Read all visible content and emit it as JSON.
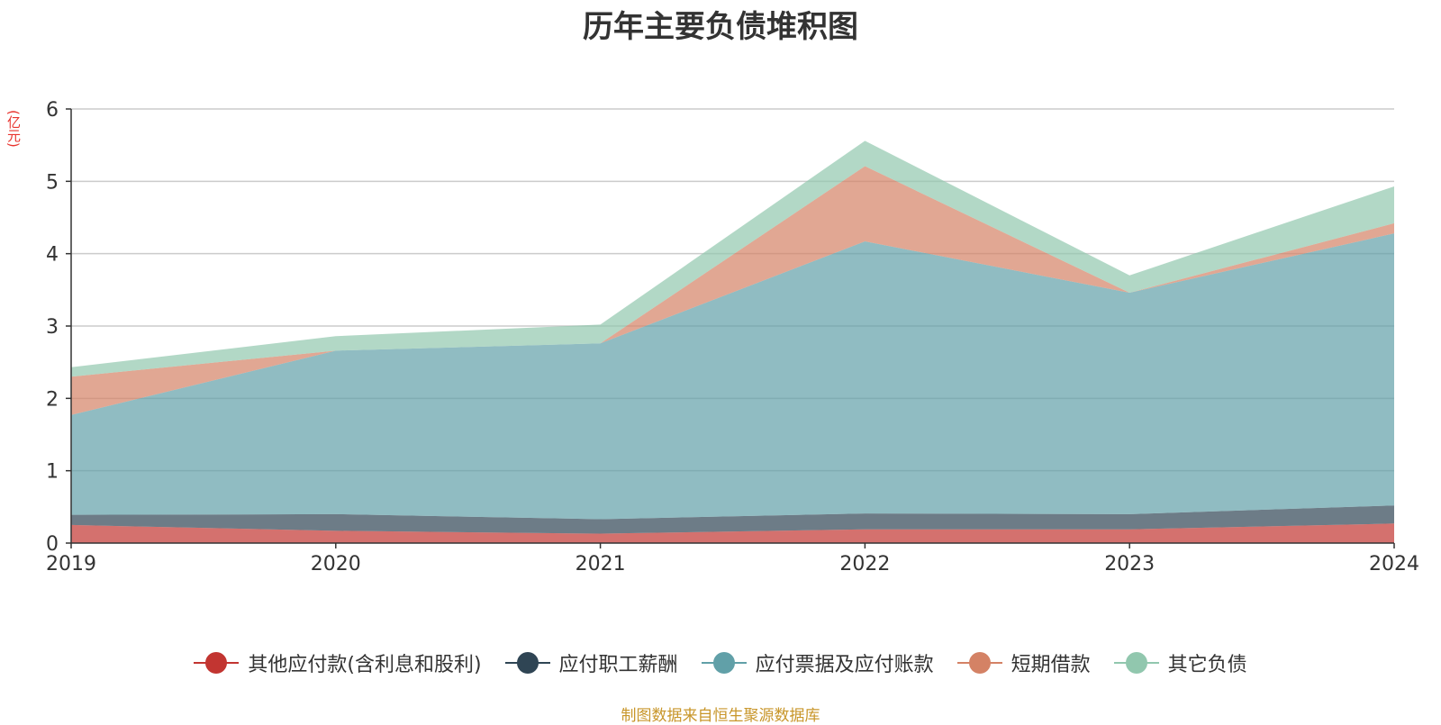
{
  "title": "历年主要负债堆积图",
  "unit_label": "(亿元)",
  "source_text": "制图数据来自恒生聚源数据库",
  "chart_data": {
    "type": "area",
    "stacked": true,
    "title": "历年主要负债堆积图",
    "ylabel": "(亿元)",
    "ylim": [
      0,
      6
    ],
    "yticks": [
      0,
      1,
      2,
      3,
      4,
      5,
      6
    ],
    "grid": true,
    "legend_position": "bottom",
    "x": [
      "2019",
      "2020",
      "2021",
      "2022",
      "2023",
      "2024"
    ],
    "series": [
      {
        "name": "其他应付款(含利息和股利)",
        "color": "#c23531",
        "values": [
          0.25,
          0.17,
          0.13,
          0.19,
          0.19,
          0.27
        ]
      },
      {
        "name": "应付职工薪酬",
        "color": "#2f4554",
        "values": [
          0.14,
          0.23,
          0.2,
          0.22,
          0.21,
          0.25
        ]
      },
      {
        "name": "应付票据及应付账款",
        "color": "#61a0a8",
        "values": [
          1.38,
          2.26,
          2.43,
          3.76,
          3.06,
          3.76
        ]
      },
      {
        "name": "短期借款",
        "color": "#d48265",
        "values": [
          0.53,
          0.0,
          0.0,
          1.04,
          0.0,
          0.14
        ]
      },
      {
        "name": "其它负债",
        "color": "#91c7ae",
        "values": [
          0.13,
          0.2,
          0.26,
          0.35,
          0.24,
          0.51
        ]
      }
    ]
  }
}
